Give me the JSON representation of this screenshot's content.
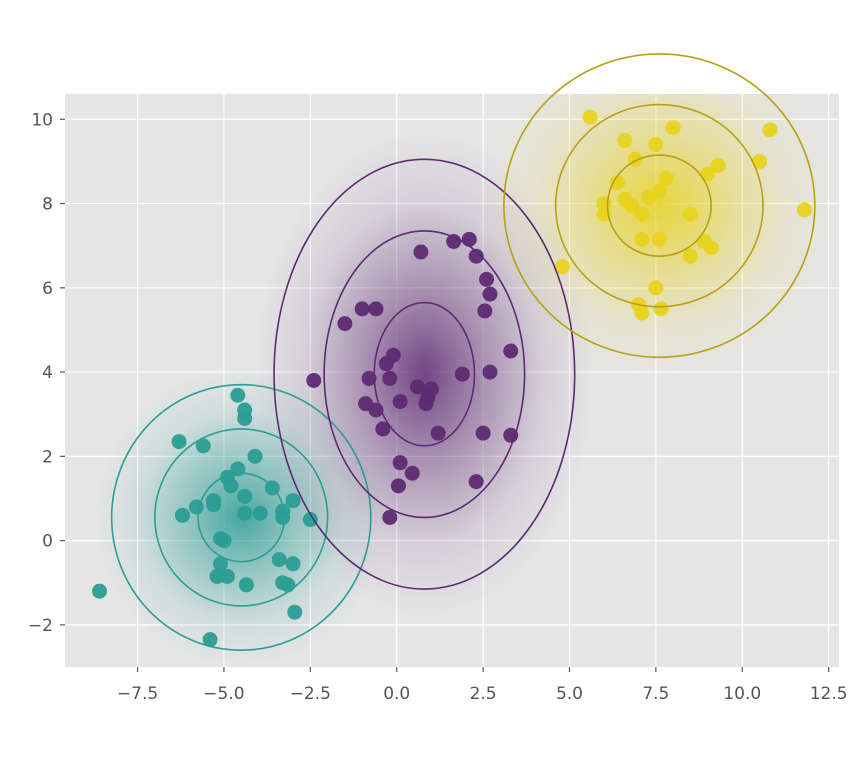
{
  "chart_data": {
    "type": "scatter",
    "title": "",
    "xlabel": "",
    "ylabel": "",
    "xlim": [
      -9.6,
      12.8
    ],
    "ylim": [
      -3.0,
      10.6
    ],
    "grid": true,
    "x_ticks": [
      -7.5,
      -5.0,
      -2.5,
      0.0,
      2.5,
      5.0,
      7.5,
      10.0,
      12.5
    ],
    "x_tick_labels": [
      "−7.5",
      "−5.0",
      "−2.5",
      "0.0",
      "2.5",
      "5.0",
      "7.5",
      "10.0",
      "12.5"
    ],
    "y_ticks": [
      -2,
      0,
      2,
      4,
      6,
      8,
      10
    ],
    "y_tick_labels": [
      "−2",
      "0",
      "2",
      "4",
      "6",
      "8",
      "10"
    ],
    "clusters": [
      {
        "color": "#2a9d95",
        "center": [
          -4.5,
          0.55
        ],
        "std": [
          1.25,
          1.05
        ],
        "ellipse_sigmas": [
          1,
          2,
          3
        ],
        "points": [
          [
            -8.6,
            -1.2
          ],
          [
            -6.3,
            2.35
          ],
          [
            -6.2,
            0.6
          ],
          [
            -5.6,
            2.25
          ],
          [
            -5.8,
            0.8
          ],
          [
            -5.3,
            0.95
          ],
          [
            -5.3,
            0.85
          ],
          [
            -4.9,
            1.5
          ],
          [
            -4.8,
            1.3
          ],
          [
            -4.6,
            3.45
          ],
          [
            -4.4,
            3.1
          ],
          [
            -4.4,
            2.9
          ],
          [
            -4.1,
            2.0
          ],
          [
            -4.4,
            1.05
          ],
          [
            -4.4,
            0.65
          ],
          [
            -3.95,
            0.65
          ],
          [
            -3.6,
            1.25
          ],
          [
            -3.3,
            0.7
          ],
          [
            -3.3,
            0.55
          ],
          [
            -3.0,
            0.95
          ],
          [
            -2.5,
            0.5
          ],
          [
            -5.1,
            0.05
          ],
          [
            -5.0,
            0.0
          ],
          [
            -5.1,
            -0.55
          ],
          [
            -5.2,
            -0.85
          ],
          [
            -4.9,
            -0.85
          ],
          [
            -4.35,
            -1.05
          ],
          [
            -3.4,
            -0.45
          ],
          [
            -3.0,
            -0.55
          ],
          [
            -3.3,
            -1.0
          ],
          [
            -3.15,
            -1.05
          ],
          [
            -2.95,
            -1.7
          ],
          [
            -5.4,
            -2.35
          ],
          [
            -4.6,
            1.7
          ]
        ]
      },
      {
        "color": "#5e2a73",
        "center": [
          0.8,
          3.95
        ],
        "std": [
          1.45,
          1.7
        ],
        "ellipse_sigmas": [
          1,
          2,
          3
        ],
        "points": [
          [
            -2.4,
            3.8
          ],
          [
            -1.5,
            5.15
          ],
          [
            -1.0,
            5.5
          ],
          [
            -0.6,
            5.5
          ],
          [
            -0.3,
            4.2
          ],
          [
            -0.1,
            4.4
          ],
          [
            -0.2,
            3.85
          ],
          [
            -0.8,
            3.85
          ],
          [
            -0.9,
            3.25
          ],
          [
            -0.6,
            3.1
          ],
          [
            -0.4,
            2.65
          ],
          [
            0.1,
            3.3
          ],
          [
            0.6,
            3.65
          ],
          [
            0.9,
            3.4
          ],
          [
            1.0,
            3.6
          ],
          [
            0.85,
            3.25
          ],
          [
            1.2,
            2.55
          ],
          [
            1.9,
            3.95
          ],
          [
            0.7,
            6.85
          ],
          [
            1.65,
            7.1
          ],
          [
            2.1,
            7.15
          ],
          [
            2.3,
            6.75
          ],
          [
            2.6,
            6.2
          ],
          [
            2.7,
            5.85
          ],
          [
            2.55,
            5.45
          ],
          [
            2.7,
            4.0
          ],
          [
            3.3,
            4.5
          ],
          [
            2.5,
            2.55
          ],
          [
            3.3,
            2.5
          ],
          [
            2.3,
            1.4
          ],
          [
            0.1,
            1.85
          ],
          [
            0.45,
            1.6
          ],
          [
            0.05,
            1.3
          ],
          [
            -0.2,
            0.55
          ]
        ]
      },
      {
        "color": "#e8d21f",
        "center": [
          7.6,
          7.95
        ],
        "std": [
          1.5,
          1.2
        ],
        "ellipse_sigmas": [
          1,
          2,
          3
        ],
        "points": [
          [
            5.6,
            10.05
          ],
          [
            6.6,
            9.5
          ],
          [
            7.5,
            9.4
          ],
          [
            8.0,
            9.8
          ],
          [
            10.8,
            9.75
          ],
          [
            10.5,
            9.0
          ],
          [
            9.3,
            8.9
          ],
          [
            9.0,
            8.7
          ],
          [
            6.9,
            9.05
          ],
          [
            6.4,
            8.5
          ],
          [
            6.6,
            8.1
          ],
          [
            6.0,
            8.0
          ],
          [
            6.0,
            7.75
          ],
          [
            6.8,
            7.95
          ],
          [
            7.1,
            7.75
          ],
          [
            7.3,
            8.15
          ],
          [
            7.6,
            8.3
          ],
          [
            7.8,
            8.6
          ],
          [
            8.5,
            7.75
          ],
          [
            7.1,
            7.15
          ],
          [
            7.6,
            7.15
          ],
          [
            8.9,
            7.1
          ],
          [
            9.1,
            6.95
          ],
          [
            8.5,
            6.75
          ],
          [
            4.8,
            6.5
          ],
          [
            7.5,
            6.0
          ],
          [
            7.0,
            5.6
          ],
          [
            7.1,
            5.4
          ],
          [
            7.65,
            5.5
          ],
          [
            11.8,
            7.85
          ]
        ]
      }
    ]
  }
}
